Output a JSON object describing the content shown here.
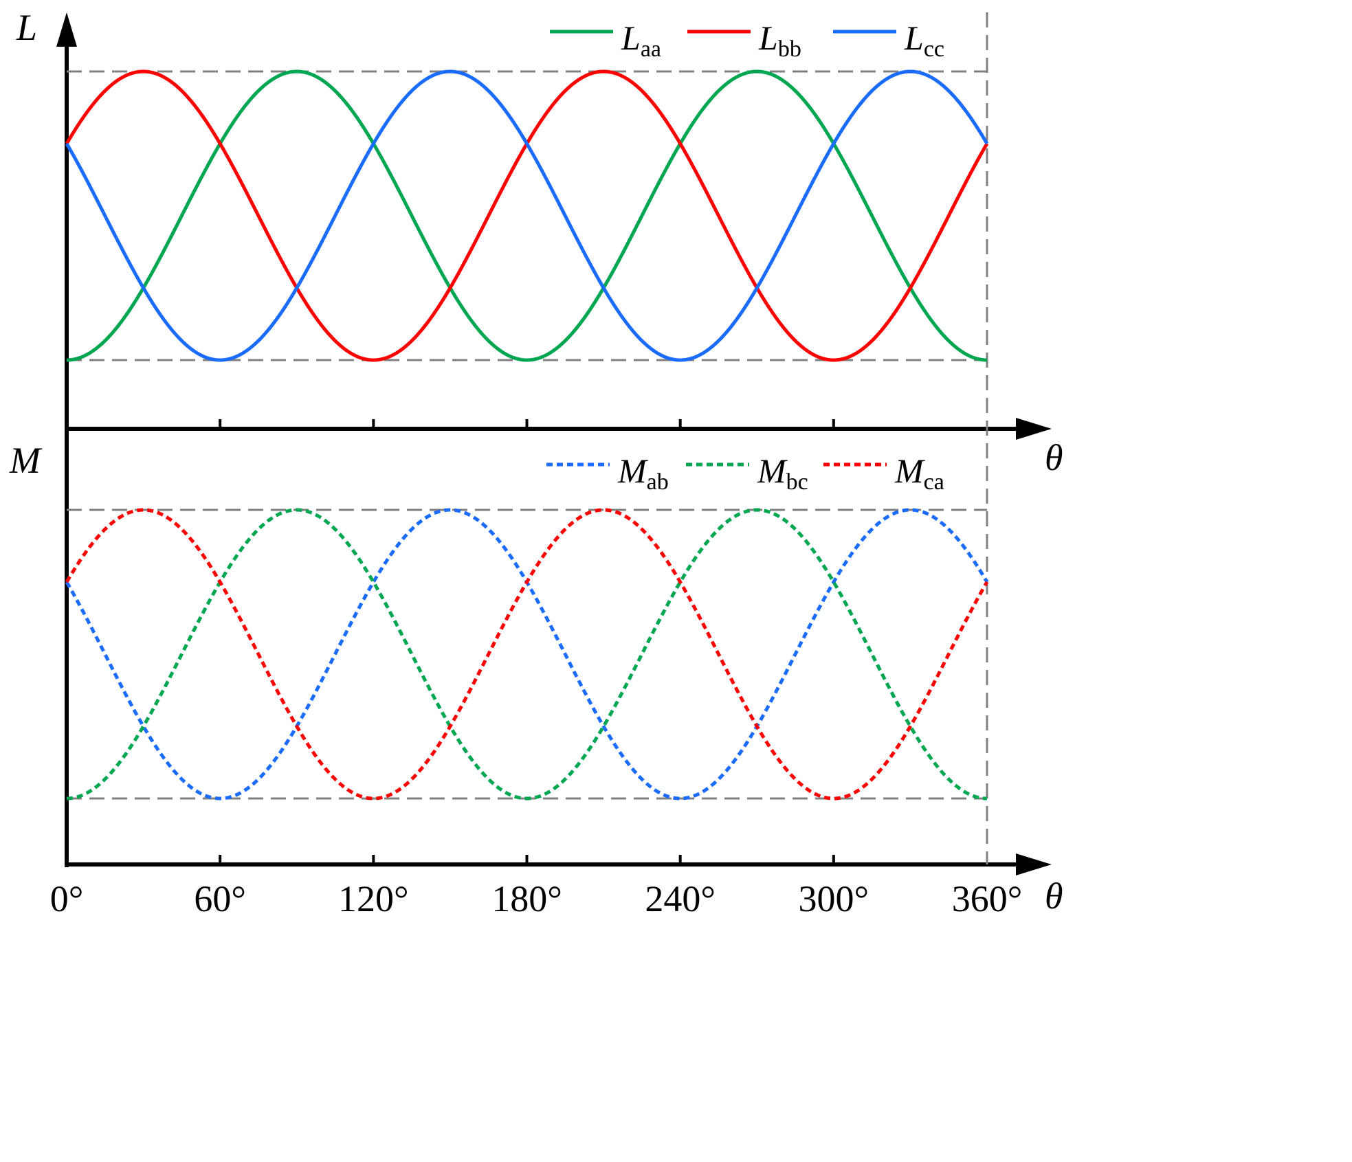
{
  "chart_data": [
    {
      "type": "line",
      "ylabel": "L",
      "xlabel": "θ",
      "xlim": [
        0,
        360
      ],
      "ylim": [
        -1,
        1
      ],
      "x_ticks": [
        60,
        120,
        180,
        240,
        300
      ],
      "legend_position": "top-right",
      "line_style": "solid",
      "series": [
        {
          "name": "Laa",
          "main": "L",
          "sub": "aa",
          "color": "#00a651",
          "phase_deg": 90
        },
        {
          "name": "Lbb",
          "main": "L",
          "sub": "bb",
          "color": "#ff0000",
          "phase_deg": 30
        },
        {
          "name": "Lcc",
          "main": "L",
          "sub": "cc",
          "color": "#1a6cff",
          "phase_deg": 150
        }
      ],
      "reference_lines": [
        1,
        -1
      ]
    },
    {
      "type": "line",
      "ylabel": "M",
      "xlabel": "θ",
      "xlim": [
        0,
        360
      ],
      "ylim": [
        -1,
        1
      ],
      "x_ticks": [
        "0°",
        "60°",
        "120°",
        "180°",
        "240°",
        "300°",
        "360°"
      ],
      "legend_position": "top-right",
      "line_style": "dotted",
      "series": [
        {
          "name": "Mab",
          "main": "M",
          "sub": "ab",
          "color": "#1a6cff",
          "phase_deg": 150
        },
        {
          "name": "Mbc",
          "main": "M",
          "sub": "bc",
          "color": "#00a651",
          "phase_deg": 90
        },
        {
          "name": "Mca",
          "main": "M",
          "sub": "ca",
          "color": "#ff0000",
          "phase_deg": 30
        }
      ],
      "reference_lines": [
        1,
        -1
      ]
    }
  ],
  "x_tick_labels": [
    "0°",
    "60°",
    "120°",
    "180°",
    "240°",
    "300°",
    "360°"
  ],
  "x_symbol": "θ",
  "upper_symbol": "L",
  "lower_symbol": "M"
}
